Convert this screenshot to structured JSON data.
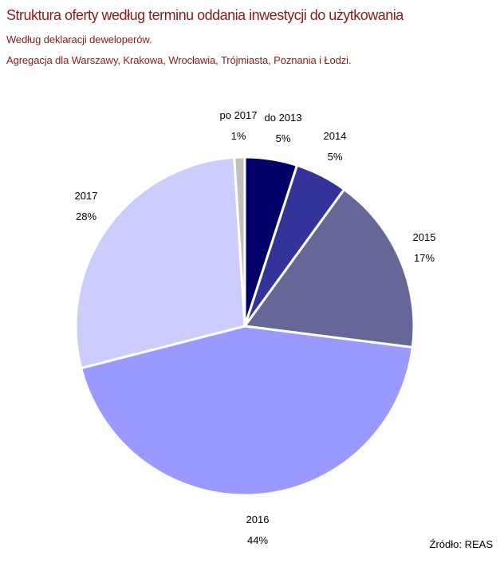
{
  "header": {
    "title": "Struktura oferty według terminu oddania inwestycji do użytkowania",
    "subtitle_1": "Według deklaracji deweloperów.",
    "subtitle_2": "Agregacja dla Warszawy, Krakowa, Wrocławia, Trójmiasta, Poznania i Łodzi."
  },
  "source": "Źródło: REAS",
  "colors": {
    "title": "#8b1a1a",
    "slice_border": "#ffffff"
  },
  "chart_data": {
    "type": "pie",
    "title": "Struktura oferty według terminu oddania inwestycji do użytkowania",
    "categories": [
      "do 2013",
      "2014",
      "2015",
      "2016",
      "2017",
      "po 2017"
    ],
    "values": [
      5,
      5,
      17,
      44,
      28,
      1
    ],
    "labels": [
      "5%",
      "5%",
      "17%",
      "44%",
      "28%",
      "1%"
    ],
    "colors": [
      "#000066",
      "#333399",
      "#666699",
      "#9999ff",
      "#ccccff",
      "#c0c0c0"
    ],
    "start": "12 o'clock",
    "direction": "clockwise",
    "legend": "none"
  }
}
